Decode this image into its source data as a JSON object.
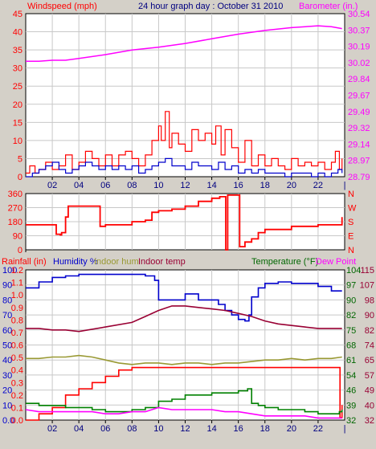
{
  "colors": {
    "bg": "#d4d0c8",
    "plot": "#ffffff",
    "grid": "#c8c8c8",
    "red": "#ff0000",
    "blue": "#0000cc",
    "magenta": "#ff00ff",
    "navy": "#000080",
    "olive": "#999933",
    "maroon": "#990033",
    "green": "#008000",
    "darkgreen": "#006600"
  },
  "chart_data": [
    {
      "type": "line",
      "title": "24 hour graph day : October 31 2010",
      "left_label": "Windspeed (mph)",
      "right_label": "Barometer (in.)",
      "x_ticks": [
        "02",
        "04",
        "06",
        "08",
        "10",
        "12",
        "14",
        "16",
        "18",
        "20",
        "22"
      ],
      "left_ticks": [
        "45",
        "40",
        "35",
        "30",
        "25",
        "20",
        "15",
        "10",
        "5",
        "0"
      ],
      "right_ticks": [
        "30.54",
        "30.37",
        "30.19",
        "30.02",
        "29.84",
        "29.67",
        "29.49",
        "29.32",
        "29.14",
        "28.97",
        "28.79"
      ],
      "ylim_left": [
        0,
        45
      ],
      "ylim_right": [
        28.79,
        30.54
      ],
      "series": [
        {
          "name": "Barometer",
          "axis": "right",
          "color": "magenta",
          "x": [
            0,
            1,
            2,
            3,
            4,
            6,
            8,
            10,
            12,
            14,
            16,
            18,
            20,
            22,
            23,
            23.8
          ],
          "y": [
            30.03,
            30.03,
            30.04,
            30.04,
            30.06,
            30.1,
            30.15,
            30.18,
            30.22,
            30.27,
            30.32,
            30.36,
            30.39,
            30.41,
            30.4,
            30.38
          ]
        },
        {
          "name": "Wind gust",
          "axis": "left",
          "color": "red",
          "x": [
            0,
            0.3,
            0.7,
            1,
            1.5,
            2,
            2.5,
            3,
            3.5,
            4,
            4.5,
            5,
            5.5,
            6,
            6.5,
            7,
            7.5,
            8,
            8.5,
            9,
            9.5,
            10,
            10.2,
            10.5,
            10.8,
            11,
            11.5,
            12,
            12.5,
            13,
            13.5,
            14,
            14.3,
            14.7,
            15,
            15.5,
            16,
            16.5,
            17,
            17.5,
            18,
            18.5,
            19,
            19.5,
            20,
            20.5,
            21,
            21.5,
            22,
            22.5,
            23,
            23.3,
            23.6,
            23.8
          ],
          "y": [
            1,
            3,
            1,
            2,
            4,
            2,
            3,
            6,
            2,
            4,
            7,
            5,
            3,
            6,
            3,
            6,
            7,
            5,
            3,
            6,
            10,
            14,
            10,
            18,
            8,
            12,
            9,
            7,
            13,
            10,
            12,
            9,
            14,
            6,
            13,
            8,
            4,
            10,
            3,
            6,
            3,
            5,
            3,
            2,
            5,
            3,
            4,
            3,
            4,
            2,
            4,
            7,
            2,
            5
          ]
        },
        {
          "name": "Windspeed",
          "axis": "left",
          "color": "blue",
          "x": [
            0,
            0.5,
            1,
            1.5,
            2,
            2.5,
            3,
            3.5,
            4,
            4.5,
            5,
            5.5,
            6,
            6.5,
            7,
            7.5,
            8,
            8.5,
            9,
            9.5,
            10,
            10.5,
            11,
            11.5,
            12,
            12.5,
            13,
            13.5,
            14,
            14.5,
            15,
            15.5,
            16,
            16.5,
            17,
            17.5,
            18,
            18.5,
            19,
            19.5,
            20,
            20.5,
            21,
            21.5,
            22,
            22.5,
            23,
            23.5,
            23.8
          ],
          "y": [
            0,
            1,
            2,
            3,
            4,
            2,
            1,
            2,
            3,
            4,
            3,
            2,
            3,
            2,
            3,
            2,
            3,
            1,
            2,
            3,
            4,
            5,
            3,
            3,
            2,
            4,
            3,
            3,
            2,
            4,
            2,
            3,
            1,
            2,
            1,
            2,
            1,
            1,
            1,
            0,
            1,
            1,
            1,
            0,
            1,
            0,
            1,
            2,
            1
          ]
        }
      ]
    },
    {
      "type": "line",
      "left_ticks": [
        "360",
        "270",
        "180",
        "90",
        "0"
      ],
      "right_ticks": [
        "N",
        "W",
        "S",
        "E",
        "N"
      ],
      "ylim": [
        0,
        360
      ],
      "series": [
        {
          "name": "Wind direction",
          "color": "red",
          "x": [
            0,
            2,
            2.3,
            2.6,
            2.7,
            3,
            3.2,
            5.5,
            5.6,
            6,
            8,
            9,
            9.5,
            10,
            11,
            12,
            13,
            14,
            14.6,
            15,
            15.05,
            15.2,
            16,
            16.1,
            16.5,
            17,
            17.5,
            18,
            20,
            22,
            23.8
          ],
          "y": [
            160,
            160,
            100,
            95,
            110,
            210,
            280,
            280,
            150,
            160,
            180,
            190,
            240,
            250,
            260,
            280,
            310,
            330,
            340,
            340,
            0,
            350,
            350,
            20,
            50,
            70,
            110,
            130,
            150,
            160,
            210
          ]
        }
      ]
    },
    {
      "type": "line",
      "left_labels": [
        "Rainfall (in)",
        "Humidity %",
        "Indoor hum",
        "Indoor temp"
      ],
      "right_labels": [
        "Temperature (°F)",
        "Dew Point"
      ],
      "left_ticks_humidity": [
        "100",
        "90",
        "80",
        "70",
        "60",
        "50",
        "40",
        "30",
        "20",
        "10",
        "0.0"
      ],
      "left_ticks_rain": [
        "1.2",
        "1.1",
        "1.0",
        "0.9",
        "0.8",
        "0.7",
        "0.6",
        "0.5",
        "0.4",
        "0.3",
        "0.2",
        "0.1",
        "0.0"
      ],
      "right_ticks_temp": [
        "104",
        "97",
        "90",
        "82",
        "75",
        "68",
        "61",
        "54",
        "46",
        "39",
        "32"
      ],
      "right_ticks_indoor": [
        "115",
        "107",
        "98",
        "90",
        "82",
        "74",
        "65",
        "57",
        "49",
        "40",
        "32"
      ],
      "ylim_humidity": [
        0,
        100
      ],
      "ylim_rain": [
        0,
        1.2
      ],
      "ylim_temp": [
        32,
        104
      ],
      "series": [
        {
          "name": "Humidity",
          "color": "blue",
          "x": [
            0,
            1,
            2,
            3,
            4,
            6,
            8,
            9,
            9.7,
            10,
            11,
            12,
            13,
            14,
            14.5,
            15,
            15.5,
            16,
            16.5,
            16.8,
            17,
            17.5,
            18,
            19,
            20,
            22,
            23,
            23.8
          ],
          "y": [
            88,
            92,
            95,
            96,
            97,
            97,
            97,
            96,
            93,
            80,
            80,
            84,
            80,
            80,
            77,
            73,
            70,
            67,
            66,
            70,
            82,
            88,
            91,
            92,
            91,
            89,
            86,
            86
          ]
        },
        {
          "name": "Indoor temp",
          "color": "maroon",
          "x": [
            0,
            1,
            2,
            3,
            4,
            6,
            8,
            9,
            10,
            11,
            12,
            13,
            14,
            15,
            16,
            17,
            18,
            19,
            20,
            21,
            22,
            23,
            23.8
          ],
          "y": [
            61,
            61,
            60,
            60,
            59,
            62,
            65,
            69,
            73,
            76,
            76,
            75,
            74,
            73,
            71,
            69,
            66,
            64,
            63,
            62,
            61,
            61,
            61
          ]
        },
        {
          "name": "Indoor hum",
          "color": "olive",
          "x": [
            0,
            1,
            2,
            3,
            4,
            5,
            6,
            7,
            8,
            9,
            10,
            11,
            12,
            13,
            14,
            15,
            16,
            17,
            18,
            19,
            20,
            21,
            22,
            23,
            23.8
          ],
          "y": [
            41,
            41,
            42,
            42,
            43,
            42,
            40,
            38,
            37,
            38,
            38,
            37,
            38,
            38,
            37,
            38,
            38,
            39,
            40,
            40,
            41,
            40,
            41,
            41,
            42
          ]
        },
        {
          "name": "Rainfall",
          "color": "red",
          "x": [
            0,
            1,
            2,
            3,
            4,
            5,
            6,
            7,
            8,
            23.6,
            23.65,
            23.8
          ],
          "y": [
            0,
            0.05,
            0.1,
            0.2,
            0.25,
            0.3,
            0.35,
            0.4,
            0.42,
            0.42,
            0.02,
            0.12
          ]
        },
        {
          "name": "Temperature",
          "color": "green",
          "x": [
            0,
            1,
            2,
            3,
            4,
            5,
            6,
            7,
            8,
            9,
            10,
            11,
            12,
            13,
            14,
            15,
            16,
            16.7,
            17,
            17.5,
            18,
            19,
            20,
            21,
            22,
            23,
            23.6,
            23.8
          ],
          "y": [
            40,
            39,
            39,
            38,
            38,
            37,
            36,
            36,
            37,
            38,
            41,
            42,
            44,
            44,
            45,
            45,
            46,
            47,
            40,
            39,
            38,
            37,
            37,
            36,
            35,
            35,
            36,
            37
          ]
        },
        {
          "name": "Dew Point",
          "color": "magenta",
          "x": [
            0,
            1,
            2,
            3,
            4,
            5,
            6,
            7,
            8,
            9,
            10,
            11,
            12,
            13,
            14,
            15,
            16,
            17,
            18,
            19,
            20,
            21,
            22,
            23,
            23.8
          ],
          "y": [
            37,
            36,
            36,
            36,
            36,
            36,
            35,
            35,
            36,
            36,
            38,
            37,
            37,
            37,
            37,
            36,
            36,
            35,
            34,
            34,
            34,
            34,
            33,
            33,
            33
          ]
        }
      ]
    }
  ]
}
